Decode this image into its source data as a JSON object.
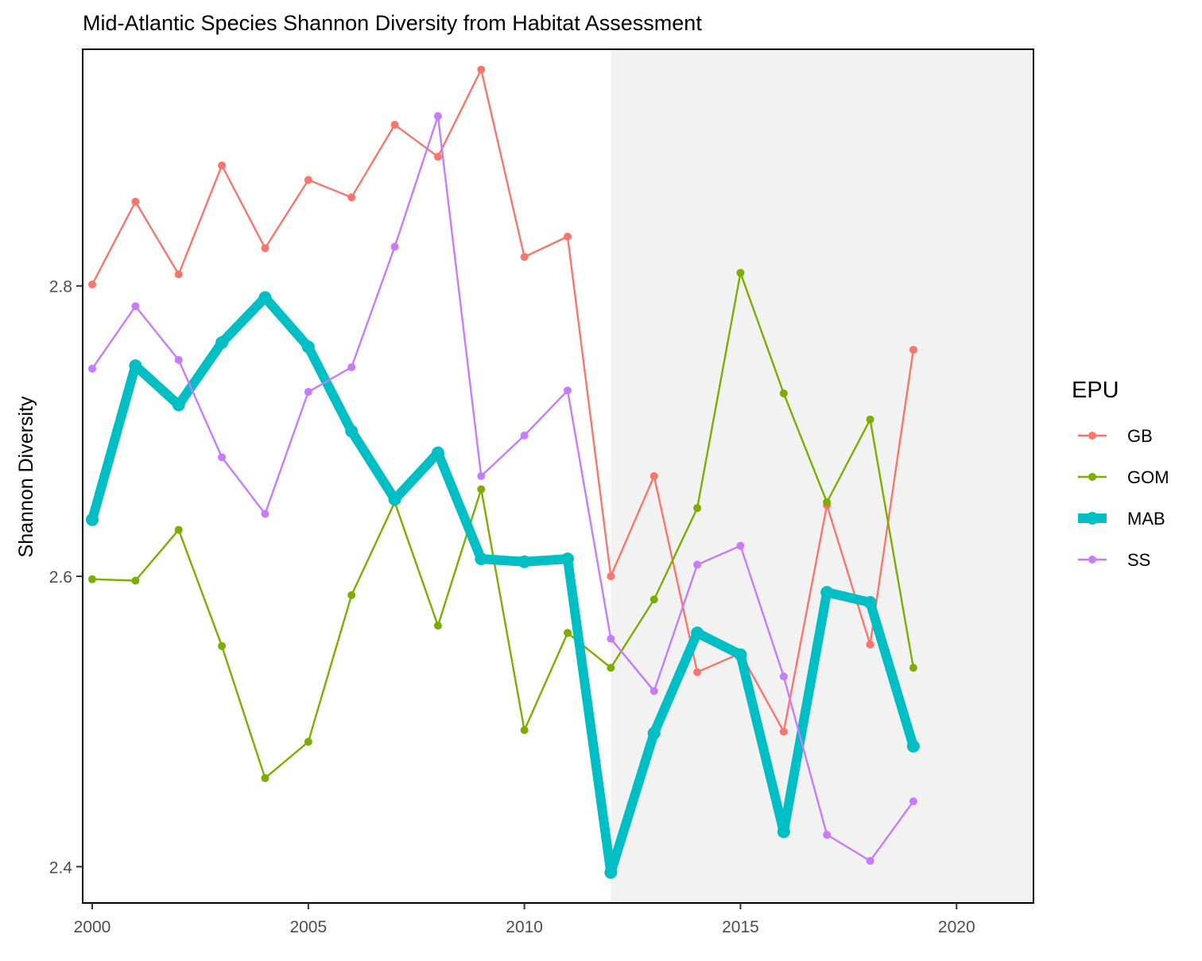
{
  "chart_data": {
    "type": "line",
    "title": "Mid-Atlantic Species Shannon Diversity from Habitat Assessment",
    "xlabel": "",
    "ylabel": "Shannon Diversity",
    "xlim": [
      2000,
      2022
    ],
    "ylim": [
      2.375,
      2.963
    ],
    "x_ticks": [
      "2000",
      "2005",
      "2010",
      "2015",
      "2020"
    ],
    "y_ticks": [
      "2.4",
      "2.6",
      "2.8"
    ],
    "shaded_region": {
      "x_start": 2012,
      "x_end": 2022,
      "color": "#f2f2f2"
    },
    "grid": false,
    "legend": {
      "title": "EPU",
      "position": "right"
    },
    "x": [
      2000,
      2001,
      2002,
      2003,
      2004,
      2005,
      2006,
      2007,
      2008,
      2009,
      2010,
      2011,
      2012,
      2013,
      2014,
      2015,
      2016,
      2017,
      2018,
      2019
    ],
    "series": [
      {
        "name": "GB",
        "color": "#F8766D",
        "width": "thin",
        "values": [
          2.801,
          2.858,
          2.808,
          2.883,
          2.826,
          2.873,
          2.861,
          2.911,
          2.889,
          2.949,
          2.82,
          2.834,
          2.6,
          2.669,
          2.534,
          2.547,
          2.493,
          2.649,
          2.553,
          2.756
        ]
      },
      {
        "name": "GOM",
        "color": "#7CAE00",
        "width": "thin",
        "values": [
          2.598,
          2.597,
          2.632,
          2.552,
          2.461,
          2.486,
          2.587,
          2.651,
          2.566,
          2.66,
          2.494,
          2.561,
          2.537,
          2.584,
          2.647,
          2.809,
          2.726,
          2.651,
          2.708,
          2.537
        ]
      },
      {
        "name": "MAB",
        "color": "#00BFC4",
        "width": "thick",
        "values": [
          2.639,
          2.745,
          2.718,
          2.761,
          2.792,
          2.758,
          2.7,
          2.653,
          2.685,
          2.612,
          2.61,
          2.612,
          2.396,
          2.492,
          2.561,
          2.546,
          2.424,
          2.589,
          2.582,
          2.483
        ]
      },
      {
        "name": "SS",
        "color": "#C77CFF",
        "width": "thin",
        "values": [
          2.743,
          2.786,
          2.749,
          2.682,
          2.643,
          2.727,
          2.744,
          2.827,
          2.917,
          2.669,
          2.697,
          2.728,
          2.557,
          2.521,
          2.608,
          2.621,
          2.531,
          2.422,
          2.404,
          2.445
        ]
      }
    ]
  }
}
